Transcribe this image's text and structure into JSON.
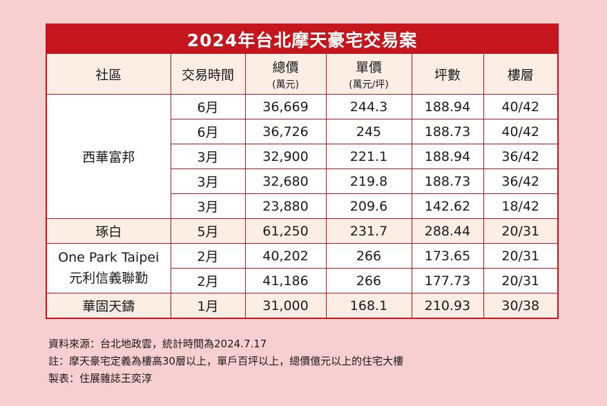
{
  "title": "2024年台北摩天豪宅交易案",
  "headers": [
    {
      "main": "社區",
      "sub": ""
    },
    {
      "main": "交易時間",
      "sub": ""
    },
    {
      "main": "總價",
      "sub": "(萬元)"
    },
    {
      "main": "單價",
      "sub": "(萬元/坪)"
    },
    {
      "main": "坪數",
      "sub": ""
    },
    {
      "main": "樓層",
      "sub": ""
    }
  ],
  "groups": [
    {
      "community": [
        "西華富邦"
      ],
      "rows": [
        {
          "time": "6月",
          "total": "36,669",
          "unit": "244.3",
          "area": "188.94",
          "floor": "40/42"
        },
        {
          "time": "6月",
          "total": "36,726",
          "unit": "245",
          "area": "188.73",
          "floor": "40/42"
        },
        {
          "time": "3月",
          "total": "32,900",
          "unit": "221.1",
          "area": "188.94",
          "floor": "36/42"
        },
        {
          "time": "3月",
          "total": "32,680",
          "unit": "219.8",
          "area": "188.73",
          "floor": "36/42"
        },
        {
          "time": "3月",
          "total": "23,880",
          "unit": "209.6",
          "area": "142.62",
          "floor": "18/42"
        }
      ]
    },
    {
      "community": [
        "琢白"
      ],
      "rows": [
        {
          "time": "5月",
          "total": "61,250",
          "unit": "231.7",
          "area": "288.44",
          "floor": "20/31"
        }
      ]
    },
    {
      "community": [
        "One Park Taipei",
        "元利信義聯勤"
      ],
      "rows": [
        {
          "time": "2月",
          "total": "40,202",
          "unit": "266",
          "area": "173.65",
          "floor": "20/31"
        },
        {
          "time": "2月",
          "total": "41,186",
          "unit": "266",
          "area": "177.73",
          "floor": "20/31"
        }
      ]
    },
    {
      "community": [
        "華固天鑄"
      ],
      "rows": [
        {
          "time": "1月",
          "total": "31,000",
          "unit": "168.1",
          "area": "210.93",
          "floor": "30/38"
        }
      ]
    }
  ],
  "footnotes": [
    "資料來源：台北地政雲，統計時間為2024.7.17",
    "註：摩天豪宅定義為樓高30層以上，單戶百坪以上，總價億元以上的住宅大樓",
    "製表：住展雜誌王奕淳"
  ],
  "colors": {
    "accent": "#c4161c",
    "header_bg": "#fdeee5",
    "page_bg": "#f7cfd1"
  }
}
